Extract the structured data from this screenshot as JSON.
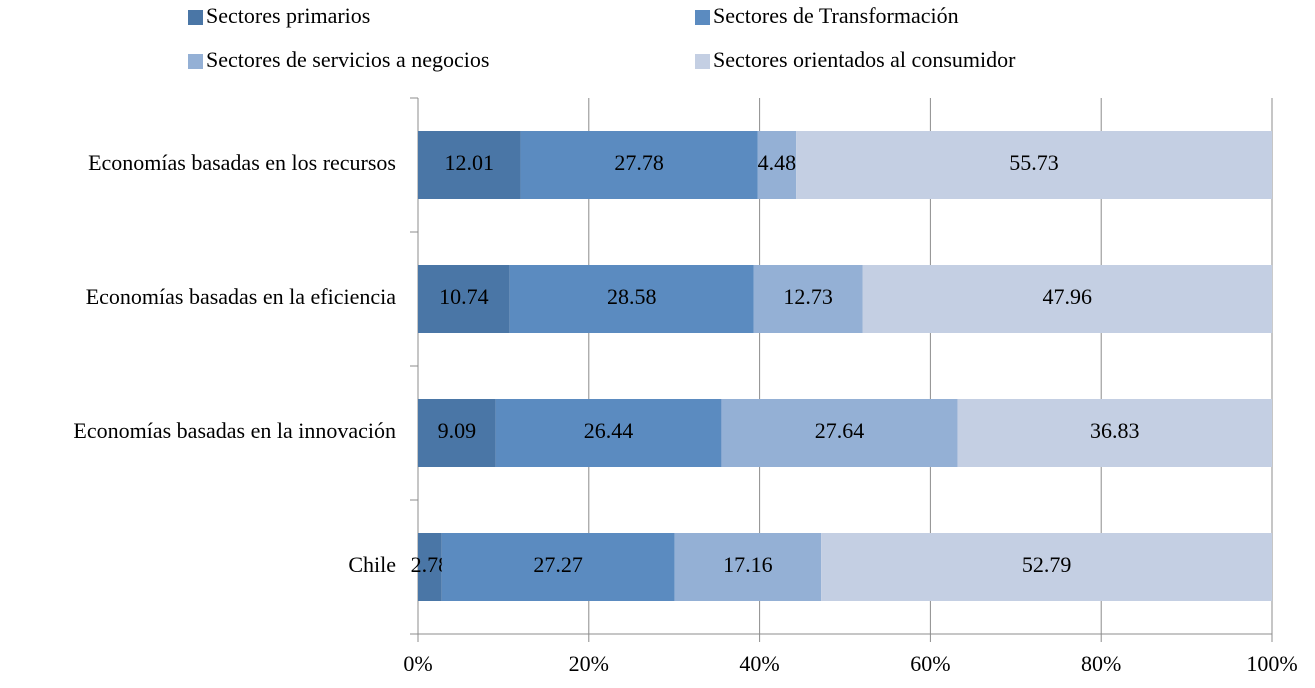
{
  "chart_data": {
    "type": "stacked-bar-horizontal",
    "categories": [
      "Economías basadas en los recursos",
      "Economías basadas en la eficiencia",
      "Economías basadas en la innovación",
      "Chile"
    ],
    "series": [
      {
        "name": "Sectores primarios",
        "color": "#4a76a6",
        "values": [
          12.01,
          10.74,
          9.09,
          2.78
        ]
      },
      {
        "name": "Sectores de Transformación",
        "color": "#5b8bc0",
        "values": [
          27.78,
          28.58,
          26.44,
          27.27
        ]
      },
      {
        "name": "Sectores de servicios a negocios",
        "color": "#94b0d5",
        "values": [
          4.48,
          12.73,
          27.64,
          17.16
        ]
      },
      {
        "name": "Sectores orientados al consumidor",
        "color": "#c4cfe3",
        "values": [
          55.73,
          47.96,
          36.83,
          52.79
        ]
      }
    ],
    "xlim": [
      0,
      100
    ],
    "xticks": [
      {
        "value": 0,
        "label": "0%"
      },
      {
        "value": 20,
        "label": "20%"
      },
      {
        "value": 40,
        "label": "40%"
      },
      {
        "value": 60,
        "label": "60%"
      },
      {
        "value": 80,
        "label": "80%"
      },
      {
        "value": 100,
        "label": "100%"
      }
    ],
    "grid": true
  }
}
